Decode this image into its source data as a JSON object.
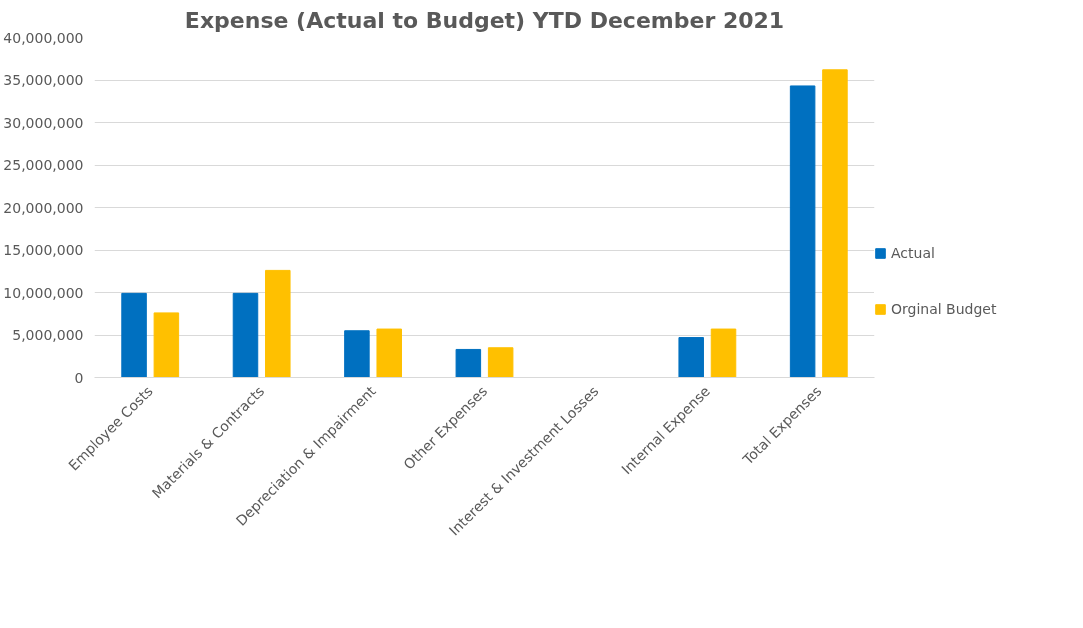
{
  "chart_data": {
    "type": "bar",
    "title": "Expense (Actual to Budget) YTD December 2021",
    "categories": [
      "Employee Costs",
      "Materials & Contracts",
      "Depreciation & Impairment",
      "Other Expenses",
      "Interest & Investment Losses",
      "Internal Expense",
      "Total Expenses"
    ],
    "series": [
      {
        "name": "Actual",
        "color": "#0070c0",
        "values": [
          9900000,
          9900000,
          5500000,
          3300000,
          0,
          4700000,
          34300000
        ]
      },
      {
        "name": "Orginal Budget",
        "color": "#ffc000",
        "values": [
          7600000,
          12600000,
          5700000,
          3500000,
          0,
          5700000,
          36200000
        ]
      }
    ],
    "ylim": [
      0,
      40000000
    ],
    "yticks": [
      {
        "value": 0,
        "label": "0"
      },
      {
        "value": 5000000,
        "label": "5,000,000"
      },
      {
        "value": 10000000,
        "label": "10,000,000"
      },
      {
        "value": 15000000,
        "label": "15,000,000"
      },
      {
        "value": 20000000,
        "label": "20,000,000"
      },
      {
        "value": 25000000,
        "label": "25,000,000"
      },
      {
        "value": 30000000,
        "label": "30,000,000"
      },
      {
        "value": 35000000,
        "label": "35,000,000"
      },
      {
        "value": 40000000,
        "label": "40,000,000"
      }
    ],
    "grid": "y",
    "legend": "right"
  }
}
